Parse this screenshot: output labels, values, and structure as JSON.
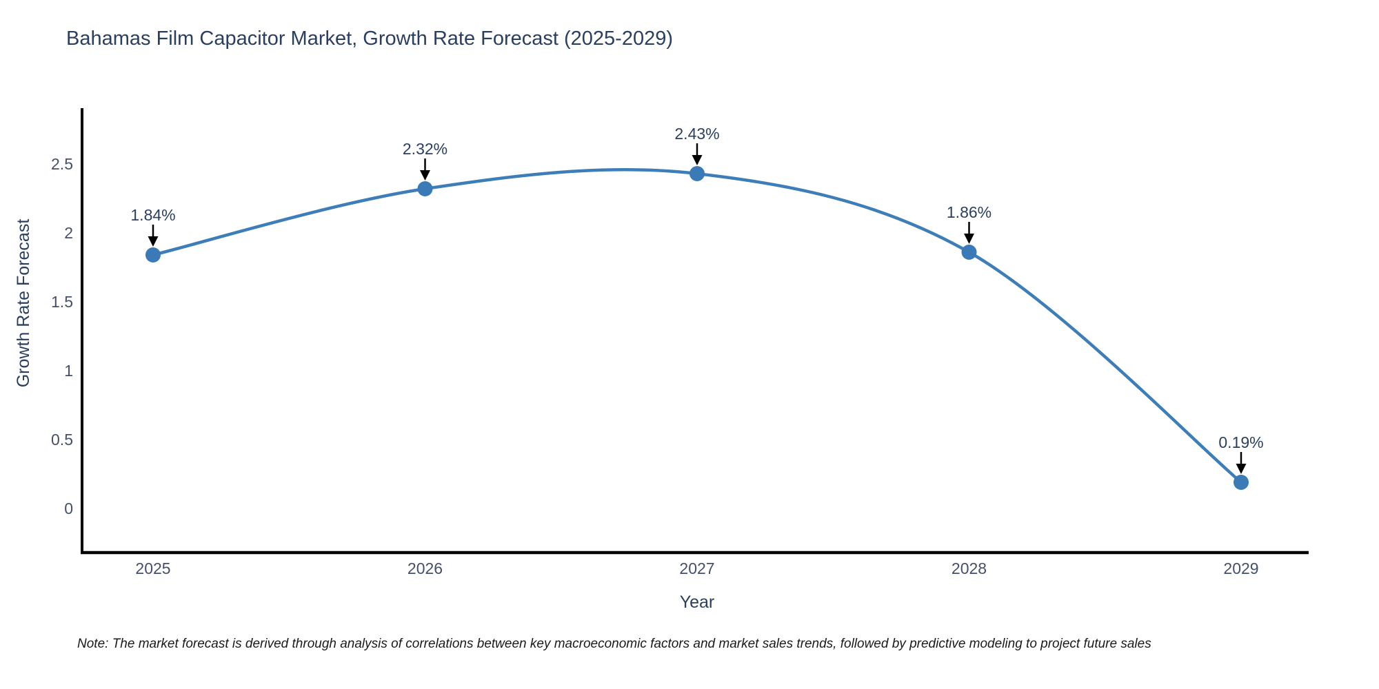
{
  "page": {
    "title": "Bahamas Film Capacitor Market, Growth Rate Forecast (2025-2029)",
    "note": "Note: The market forecast is derived through analysis of correlations between key macroeconomic factors and market sales trends, followed by predictive modeling to project future sales"
  },
  "chart_data": {
    "type": "line",
    "title": "Bahamas Film Capacitor Market, Growth Rate Forecast (2025-2029)",
    "categories": [
      "2025",
      "2026",
      "2027",
      "2028",
      "2029"
    ],
    "values": [
      1.84,
      2.32,
      2.43,
      1.86,
      0.19
    ],
    "point_labels": [
      "1.84%",
      "2.32%",
      "2.43%",
      "1.86%",
      "0.19%"
    ],
    "xlabel": "Year",
    "ylabel": "Growth Rate Forecast",
    "yticks": [
      0,
      0.5,
      1,
      1.5,
      2,
      2.5
    ],
    "ylim": [
      -0.32,
      2.9
    ],
    "line_shape": "spline",
    "grid": false,
    "legend_position": "none",
    "line_color": "#3d7eb8",
    "marker_color": "#3a7ab6",
    "axis_color": "#000000",
    "text_color": "#2a3f5f",
    "tick_color": "#44506a",
    "annotation_color": "#000000",
    "note_color": "#1a1a1a",
    "background": "#ffffff"
  }
}
